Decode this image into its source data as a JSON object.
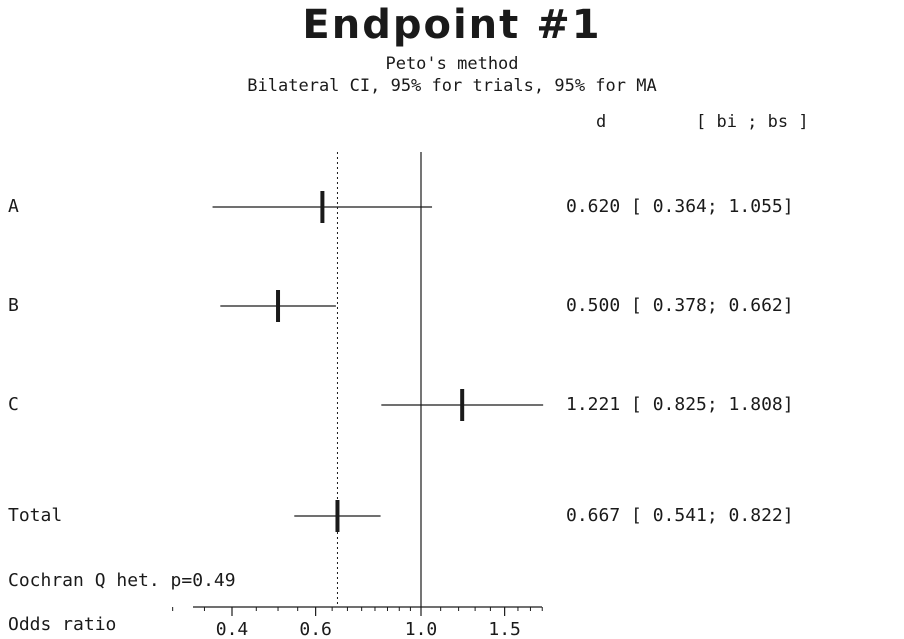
{
  "chart_data": {
    "type": "forest",
    "title": "Endpoint #1",
    "subtitle": "Peto's method",
    "subtitle2": "Bilateral CI, 95% for trials, 95% for MA",
    "col_headers": {
      "d": "d",
      "ci": "[ bi ; bs ]"
    },
    "rows": [
      {
        "label": "A",
        "d": 0.62,
        "lo": 0.364,
        "hi": 1.055,
        "text": "0.620 [ 0.364; 1.055]"
      },
      {
        "label": "B",
        "d": 0.5,
        "lo": 0.378,
        "hi": 0.662,
        "text": "0.500 [ 0.378; 0.662]"
      },
      {
        "label": "C",
        "d": 1.221,
        "lo": 0.825,
        "hi": 1.808,
        "text": "1.221 [ 0.825; 1.808]"
      },
      {
        "label": "Total",
        "d": 0.667,
        "lo": 0.541,
        "hi": 0.822,
        "text": "0.667 [ 0.541; 0.822]"
      }
    ],
    "reference_line": 1.0,
    "pooled_reference": 0.667,
    "heterogeneity": "Cochran Q het. p=0.49",
    "xlabel": "Odds ratio",
    "x_scale": "log",
    "xlim": [
      0.3,
      1.8
    ],
    "xticks": [
      0.4,
      0.6,
      1.0,
      1.5
    ],
    "xtick_labels": [
      "0.4",
      "0.6",
      "1.0",
      "1.5"
    ]
  }
}
